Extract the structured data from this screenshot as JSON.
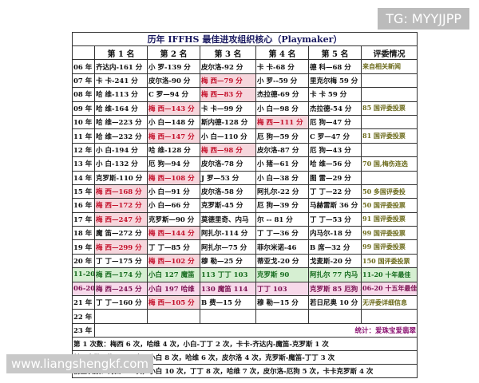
{
  "watermark_top": "TG: MYYJJPP",
  "watermark_bottom": "www.liangshengkf.com",
  "table": {
    "title": "历年 IFFHS 最佳进攻组织核心（Playmaker）",
    "headers": [
      "第 1 名",
      "第 2 名",
      "第 3 名",
      "第 4 名",
      "第 5 名",
      "评委情况"
    ],
    "rows": [
      {
        "label": "06 年",
        "cells": [
          "齐达内-161 分",
          "小 罗-139 分",
          "皮尔洛-92 分",
          "卡 卡-68 分",
          "德 科—68 分",
          "来自相关新闻"
        ]
      },
      {
        "label": "07 年",
        "cells": [
          "卡 卡-241 分",
          "皮尔洛-90 分",
          "梅 西—79 分",
          "小 罗--59 分",
          "里克尔梅 59 分",
          null
        ]
      },
      {
        "label": "08 年",
        "cells": [
          "哈 维-113 分",
          "C 罗—94 分",
          "梅 西—83 分",
          "杰拉德-69 分",
          "卡 卡 59 分",
          null
        ]
      },
      {
        "label": "09 年",
        "cells": [
          "哈 维-164 分",
          "梅 西—143 分",
          "卡 卡—99 分",
          "小 白—98 分",
          "杰拉德-54 分",
          "85 国评委投票"
        ]
      },
      {
        "label": "10 年",
        "cells": [
          "哈 维—223 分",
          "小 白—148 分",
          "斯内德-128 分",
          "梅 西—111 分",
          "厄 狗—47 分",
          null
        ]
      },
      {
        "label": "11 年",
        "cells": [
          "哈 维—232 分",
          "梅 西—147 分",
          "小 白—110 分",
          "厄 狗—59 分",
          "C 罗—47 分",
          "81 国评委投票"
        ]
      },
      {
        "label": "12 年",
        "cells": [
          "小 白-194 分",
          "哈 维-128 分",
          "梅 西—98 分",
          "皮尔洛-87 分",
          "厄 狗—43 分",
          null
        ]
      },
      {
        "label": "13 年",
        "cells": [
          "小 白-132 分",
          "厄 狗—94 分",
          "皮尔洛-78 分",
          "小 猪—61 分",
          "哈 维—56 分",
          "70 国,梅伤连选"
        ]
      },
      {
        "label": "14 年",
        "cells": [
          "克罗斯-110 分",
          "梅 西—108 分",
          "J 罗—53 分",
          "小 白—38 分",
          "图 雷—29 分",
          null
        ]
      },
      {
        "label": "15 年",
        "cells": [
          "梅 西—168 分",
          "小 白—91 分",
          "皮尔洛-58 分",
          "阿扎尔-22 分",
          "丁 丁—22 分",
          "50 多国评委投"
        ]
      },
      {
        "label": "16 年",
        "cells": [
          "梅 西—172 分",
          "小 白—66 分",
          "克罗斯-45 分",
          "厄 狗—39 分",
          "马赫雷斯 36 分",
          "50 国评委投票"
        ]
      },
      {
        "label": "17 年",
        "cells": [
          "梅 西—247 分",
          "克罗斯—90 分",
          "莫德里奇、内马",
          "尔 -- 81 分",
          "丁 丁—53 分",
          "91 国评委投票"
        ]
      },
      {
        "label": "18 年",
        "cells": [
          "魔 笛—272 分",
          "梅 西—144 分",
          "阿扎尔-114 分",
          "丁 丁—36 分",
          "内马尔-18 分",
          "99 国评委投票"
        ]
      },
      {
        "label": "19 年",
        "cells": [
          "梅 西—299 分",
          "丁 丁—85 分",
          "阿扎尔—75 分",
          "菲尔米诺-46",
          "B 席—32 分",
          "99 国评委投票"
        ]
      },
      {
        "label": "20 年",
        "cells": [
          "丁 丁—175 分",
          "梅 西—102 分",
          "穆 勒—25 分",
          "蒂亚戈-20 分",
          "戈麦斯-20 分",
          "150 国评委投票"
        ]
      },
      {
        "label": "11-20",
        "cells": [
          "梅 西—174 分",
          "小白 127 魔笛",
          "113 丁丁 103",
          "克罗斯 90",
          "阿扎尔 77 内马 71",
          "11-20 十年最佳"
        ]
      },
      {
        "label": "06-20",
        "cells": [
          "梅 西—245 分",
          "小白 197 哈维",
          "130 魔笛 114",
          "丁丁 103",
          "克罗斯 85 厄狗 85",
          "06-20 十五年最佳"
        ]
      },
      {
        "label": "21 年",
        "cells": [
          "丁 丁—160 分",
          "梅 西—105 分",
          "B 费—15 分",
          "穆 勒—15 分",
          "若日尼奥 10 分",
          "无评委详细信息"
        ]
      },
      {
        "label": "22 年",
        "cells": [
          null,
          null,
          null,
          null,
          null,
          null
        ]
      },
      {
        "label": "23 年",
        "cells": [
          null,
          null,
          null,
          null,
          null,
          null
        ]
      }
    ],
    "stats": "统计：爱珠宝爱翡翠",
    "footer": [
      "第 1 次数：梅西 6 次，哈维 4 次，小白-丁丁 2 次，卡卡-齐达内-魔笛-克罗斯 1 次",
      "前三次数：梅西 15 次，小白 8 次，哈维 6 次，皮尔洛 4 次，克罗斯-魔笛-丁丁 3 次",
      "前五次数：梅西 16 次，小白 10 次，丁丁 8 次，哈维 7 次，皮尔洛-厄狗 5 次，卡卡克罗斯 4 次"
    ]
  }
}
